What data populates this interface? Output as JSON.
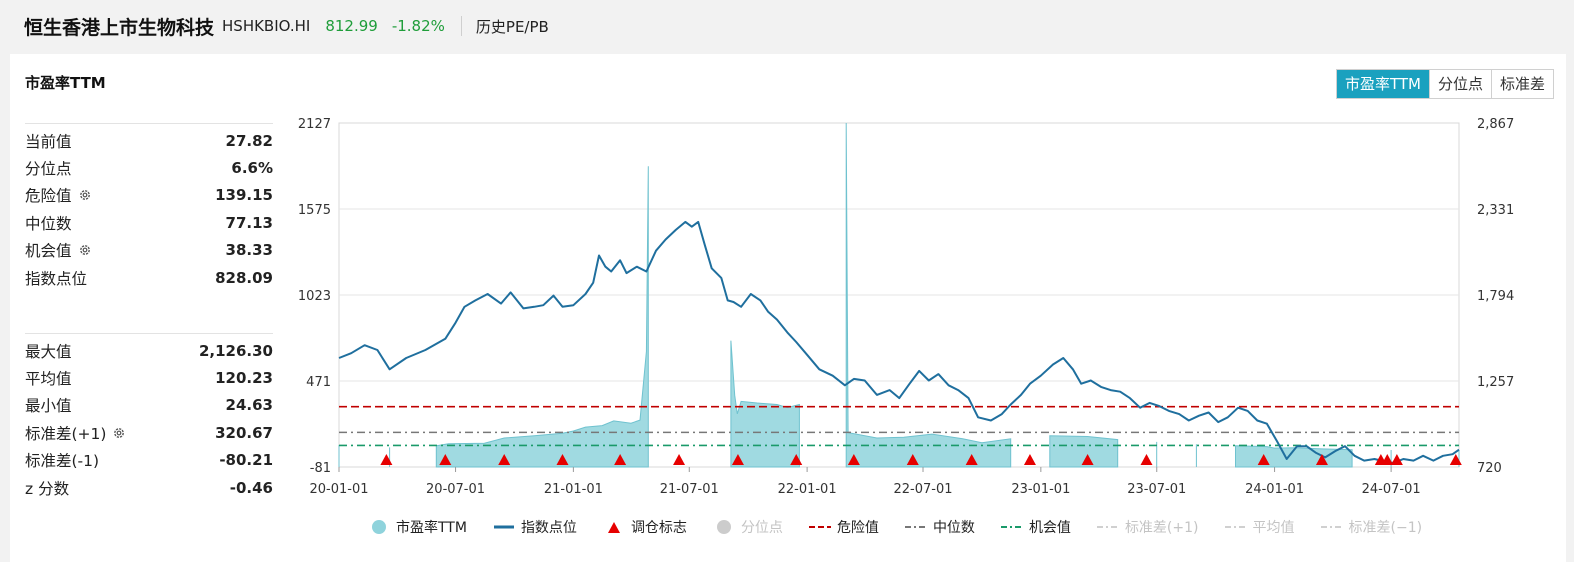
{
  "header": {
    "name": "恒生香港上市生物科技",
    "code": "HSHKBIO.HI",
    "price": "812.99",
    "change": "-1.82%",
    "tab": "历史PE/PB"
  },
  "panel": {
    "title": "市盈率TTM",
    "tabs": [
      "市盈率TTM",
      "分位点",
      "标准差"
    ],
    "active_tab": 0
  },
  "stats_top": [
    {
      "label": "当前值",
      "value": "27.82",
      "gear": false
    },
    {
      "label": "分位点",
      "value": "6.6%",
      "gear": false
    },
    {
      "label": "危险值",
      "value": "139.15",
      "gear": true
    },
    {
      "label": "中位数",
      "value": "77.13",
      "gear": false
    },
    {
      "label": "机会值",
      "value": "38.33",
      "gear": true
    },
    {
      "label": "指数点位",
      "value": "828.09",
      "gear": false
    }
  ],
  "stats_bottom": [
    {
      "label": "最大值",
      "value": "2,126.30",
      "gear": false
    },
    {
      "label": "平均值",
      "value": "120.23",
      "gear": false
    },
    {
      "label": "最小值",
      "value": "24.63",
      "gear": false
    },
    {
      "label": "标准差(+1)",
      "value": "320.67",
      "gear": true
    },
    {
      "label": "标准差(-1)",
      "value": "-80.21",
      "gear": false
    },
    {
      "label": "z 分数",
      "value": "-0.46",
      "gear": false
    }
  ],
  "colors": {
    "pe_area": "#8fd3dc",
    "index_line": "#1f6f9e",
    "marker": "#e60000",
    "danger": "#c00000",
    "median": "#777777",
    "opportunity": "#1a9a6a",
    "active_tab": "#1aa1bf",
    "up_down_green": "#1f9d3a"
  },
  "chart_data": {
    "type": "line",
    "x_ticks": [
      "20-01-01",
      "20-07-01",
      "21-01-01",
      "21-07-01",
      "22-01-01",
      "22-07-01",
      "23-01-01",
      "23-07-01",
      "24-01-01",
      "24-07-01"
    ],
    "x_domain": [
      "2020-01-01",
      "2024-10-15"
    ],
    "y_left": {
      "ticks": [
        "2127",
        "1575",
        "1023",
        "471",
        "-81"
      ],
      "ylim": [
        -81,
        2127
      ]
    },
    "y_right": {
      "ticks": [
        "2,867",
        "2,331",
        "1,794",
        "1,257",
        "720"
      ],
      "ylim": [
        720,
        2867
      ]
    },
    "legend": [
      {
        "name": "市盈率TTM",
        "symbol": "circle",
        "color": "#8fd3dc",
        "active": true
      },
      {
        "name": "指数点位",
        "symbol": "line",
        "color": "#1f6f9e",
        "active": true
      },
      {
        "name": "调仓标志",
        "symbol": "triangle",
        "color": "#e60000",
        "active": true
      },
      {
        "name": "分位点",
        "symbol": "circle",
        "color": "#cccccc",
        "active": false
      },
      {
        "name": "危险值",
        "symbol": "dash",
        "color": "#c00000",
        "active": true
      },
      {
        "name": "中位数",
        "symbol": "dashdot",
        "color": "#777777",
        "active": true
      },
      {
        "name": "机会值",
        "symbol": "dashdot",
        "color": "#1a9a6a",
        "active": true
      },
      {
        "name": "标准差(+1)",
        "symbol": "dashdot",
        "color": "#d0d0d0",
        "active": false
      },
      {
        "name": "平均值",
        "symbol": "dashdot",
        "color": "#d0d0d0",
        "active": false
      },
      {
        "name": "标准差(−1)",
        "symbol": "dashdot",
        "color": "#d0d0d0",
        "active": false
      }
    ],
    "reference_lines": {
      "danger": 139.15,
      "median": 77.13,
      "opportunity": 38.33
    },
    "pe_series": [
      [
        "2020-01-01",
        60
      ],
      [
        "2020-03-20",
        45
      ],
      [
        "2020-06-01",
        55
      ],
      [
        "2020-06-20",
        68
      ],
      [
        "2020-08-15",
        72
      ],
      [
        "2020-09-15",
        105
      ],
      [
        "2020-11-01",
        120
      ],
      [
        "2020-12-15",
        135
      ],
      [
        "2021-01-01",
        150
      ],
      [
        "2021-01-20",
        175
      ],
      [
        "2021-02-15",
        185
      ],
      [
        "2021-03-05",
        215
      ],
      [
        "2021-04-01",
        200
      ],
      [
        "2021-04-15",
        220
      ],
      [
        "2021-04-25",
        660
      ],
      [
        "2021-04-28",
        1850
      ],
      [
        "2021-09-04",
        730
      ],
      [
        "2021-09-10",
        380
      ],
      [
        "2021-09-14",
        260
      ],
      [
        "2021-09-20",
        340
      ],
      [
        "2021-10-15",
        330
      ],
      [
        "2021-11-15",
        320
      ],
      [
        "2021-12-01",
        300
      ],
      [
        "2021-12-20",
        320
      ],
      [
        "2022-03-03",
        2127
      ],
      [
        "2022-03-06",
        140
      ],
      [
        "2022-04-20",
        105
      ],
      [
        "2022-06-01",
        110
      ],
      [
        "2022-07-15",
        130
      ],
      [
        "2022-09-01",
        100
      ],
      [
        "2022-10-01",
        75
      ],
      [
        "2022-11-15",
        100
      ],
      [
        "2023-01-15",
        120
      ],
      [
        "2023-03-15",
        115
      ],
      [
        "2023-05-01",
        95
      ],
      [
        "2023-07-01",
        80
      ],
      [
        "2023-09-01",
        65
      ],
      [
        "2023-11-01",
        55
      ],
      [
        "2023-12-20",
        50
      ],
      [
        "2024-01-01",
        40
      ],
      [
        "2024-02-01",
        42
      ],
      [
        "2024-03-15",
        35
      ],
      [
        "2024-05-01",
        30
      ],
      [
        "2024-07-01",
        28
      ],
      [
        "2024-10-15",
        28
      ]
    ],
    "index_series": [
      [
        "2020-01-01",
        1400
      ],
      [
        "2020-01-20",
        1430
      ],
      [
        "2020-02-10",
        1480
      ],
      [
        "2020-03-01",
        1450
      ],
      [
        "2020-03-20",
        1330
      ],
      [
        "2020-04-15",
        1400
      ],
      [
        "2020-05-15",
        1450
      ],
      [
        "2020-06-15",
        1520
      ],
      [
        "2020-07-01",
        1620
      ],
      [
        "2020-07-15",
        1720
      ],
      [
        "2020-08-01",
        1760
      ],
      [
        "2020-08-20",
        1800
      ],
      [
        "2020-09-10",
        1740
      ],
      [
        "2020-09-25",
        1810
      ],
      [
        "2020-10-15",
        1710
      ],
      [
        "2020-11-01",
        1720
      ],
      [
        "2020-11-15",
        1730
      ],
      [
        "2020-12-01",
        1790
      ],
      [
        "2020-12-15",
        1720
      ],
      [
        "2021-01-01",
        1730
      ],
      [
        "2021-01-20",
        1800
      ],
      [
        "2021-02-01",
        1870
      ],
      [
        "2021-02-10",
        2040
      ],
      [
        "2021-02-20",
        1970
      ],
      [
        "2021-03-01",
        1940
      ],
      [
        "2021-03-15",
        2010
      ],
      [
        "2021-03-25",
        1930
      ],
      [
        "2021-04-10",
        1970
      ],
      [
        "2021-04-25",
        1940
      ],
      [
        "2021-05-10",
        2070
      ],
      [
        "2021-05-25",
        2140
      ],
      [
        "2021-06-10",
        2200
      ],
      [
        "2021-06-25",
        2250
      ],
      [
        "2021-07-05",
        2220
      ],
      [
        "2021-07-15",
        2250
      ],
      [
        "2021-07-25",
        2110
      ],
      [
        "2021-08-05",
        1960
      ],
      [
        "2021-08-20",
        1900
      ],
      [
        "2021-08-30",
        1760
      ],
      [
        "2021-09-08",
        1750
      ],
      [
        "2021-09-20",
        1720
      ],
      [
        "2021-10-05",
        1800
      ],
      [
        "2021-10-20",
        1760
      ],
      [
        "2021-11-01",
        1690
      ],
      [
        "2021-11-15",
        1640
      ],
      [
        "2021-12-01",
        1560
      ],
      [
        "2021-12-15",
        1500
      ],
      [
        "2022-01-01",
        1420
      ],
      [
        "2022-01-20",
        1330
      ],
      [
        "2022-02-10",
        1290
      ],
      [
        "2022-03-01",
        1230
      ],
      [
        "2022-03-15",
        1270
      ],
      [
        "2022-04-01",
        1260
      ],
      [
        "2022-04-20",
        1170
      ],
      [
        "2022-05-10",
        1200
      ],
      [
        "2022-05-25",
        1150
      ],
      [
        "2022-06-10",
        1240
      ],
      [
        "2022-06-25",
        1320
      ],
      [
        "2022-07-10",
        1260
      ],
      [
        "2022-07-25",
        1300
      ],
      [
        "2022-08-10",
        1230
      ],
      [
        "2022-08-25",
        1200
      ],
      [
        "2022-09-10",
        1150
      ],
      [
        "2022-09-25",
        1030
      ],
      [
        "2022-10-15",
        1010
      ],
      [
        "2022-11-01",
        1050
      ],
      [
        "2022-11-15",
        1110
      ],
      [
        "2022-12-01",
        1170
      ],
      [
        "2022-12-15",
        1240
      ],
      [
        "2023-01-01",
        1290
      ],
      [
        "2023-01-20",
        1360
      ],
      [
        "2023-02-05",
        1400
      ],
      [
        "2023-02-20",
        1330
      ],
      [
        "2023-03-05",
        1240
      ],
      [
        "2023-03-20",
        1260
      ],
      [
        "2023-04-05",
        1220
      ],
      [
        "2023-04-20",
        1200
      ],
      [
        "2023-05-05",
        1190
      ],
      [
        "2023-05-20",
        1150
      ],
      [
        "2023-06-05",
        1090
      ],
      [
        "2023-06-20",
        1120
      ],
      [
        "2023-07-05",
        1100
      ],
      [
        "2023-07-20",
        1070
      ],
      [
        "2023-08-05",
        1050
      ],
      [
        "2023-08-20",
        1010
      ],
      [
        "2023-09-05",
        1040
      ],
      [
        "2023-09-20",
        1060
      ],
      [
        "2023-10-05",
        1000
      ],
      [
        "2023-10-20",
        1030
      ],
      [
        "2023-11-05",
        1090
      ],
      [
        "2023-11-20",
        1070
      ],
      [
        "2023-12-05",
        1010
      ],
      [
        "2023-12-20",
        990
      ],
      [
        "2024-01-05",
        880
      ],
      [
        "2024-01-20",
        770
      ],
      [
        "2024-02-05",
        850
      ],
      [
        "2024-02-20",
        850
      ],
      [
        "2024-03-05",
        810
      ],
      [
        "2024-03-20",
        780
      ],
      [
        "2024-04-05",
        820
      ],
      [
        "2024-04-20",
        850
      ],
      [
        "2024-05-05",
        790
      ],
      [
        "2024-05-20",
        760
      ],
      [
        "2024-06-05",
        770
      ],
      [
        "2024-06-20",
        755
      ],
      [
        "2024-07-05",
        745
      ],
      [
        "2024-07-20",
        770
      ],
      [
        "2024-08-05",
        760
      ],
      [
        "2024-08-20",
        790
      ],
      [
        "2024-09-05",
        760
      ],
      [
        "2024-09-20",
        790
      ],
      [
        "2024-10-05",
        800
      ],
      [
        "2024-10-15",
        828
      ]
    ],
    "rebalance_markers": [
      "2020-03-15",
      "2020-06-15",
      "2020-09-15",
      "2020-12-15",
      "2021-03-15",
      "2021-06-15",
      "2021-09-15",
      "2021-12-15",
      "2022-03-15",
      "2022-06-15",
      "2022-09-15",
      "2022-12-15",
      "2023-03-15",
      "2023-06-15",
      "2023-12-15",
      "2024-03-15",
      "2024-06-15",
      "2024-06-25",
      "2024-07-10",
      "2024-10-10"
    ]
  }
}
